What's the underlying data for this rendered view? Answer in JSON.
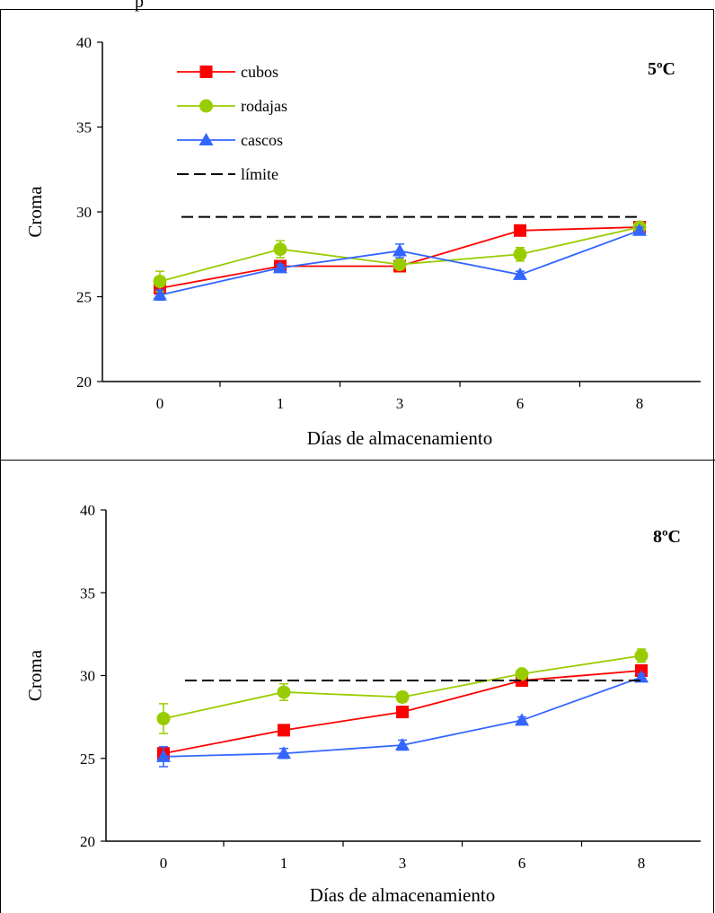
{
  "top_text": "p",
  "chart_data": [
    {
      "type": "line",
      "annotation": "5ºC",
      "xlabel": "Días de almacenamiento",
      "ylabel": "Croma",
      "categories": [
        "0",
        "1",
        "3",
        "6",
        "8"
      ],
      "ylim": [
        20,
        40
      ],
      "yticks": [
        "20",
        "25",
        "30",
        "35",
        "40"
      ],
      "grid": false,
      "legend_position": "top-left",
      "series": [
        {
          "name": "cubos",
          "color": "#ff0000",
          "marker": "square",
          "values": [
            25.5,
            26.8,
            26.8,
            28.9,
            29.1
          ],
          "errors": [
            0.3,
            0.2,
            0.2,
            0.2,
            0.3
          ]
        },
        {
          "name": "rodajas",
          "color": "#99cc00",
          "marker": "circle",
          "values": [
            25.9,
            27.8,
            26.9,
            27.5,
            29.1
          ],
          "errors": [
            0.6,
            0.5,
            0.2,
            0.4,
            0.3
          ]
        },
        {
          "name": "cascos",
          "color": "#3366ff",
          "marker": "triangle",
          "values": [
            25.1,
            26.7,
            27.7,
            26.3,
            28.9
          ],
          "errors": [
            0.3,
            0.2,
            0.4,
            0.2,
            0.2
          ]
        },
        {
          "name": "límite",
          "color": "#000000",
          "marker": "none",
          "dashed": true,
          "values": [
            29.7,
            29.7,
            29.7,
            29.7,
            29.7
          ]
        }
      ]
    },
    {
      "type": "line",
      "annotation": "8ºC",
      "xlabel": "Días de almacenamiento",
      "ylabel": "Croma",
      "categories": [
        "0",
        "1",
        "3",
        "6",
        "8"
      ],
      "ylim": [
        20,
        40
      ],
      "yticks": [
        "20",
        "25",
        "30",
        "35",
        "40"
      ],
      "grid": false,
      "series": [
        {
          "name": "cubos",
          "color": "#ff0000",
          "marker": "square",
          "values": [
            25.3,
            26.7,
            27.8,
            29.7,
            30.3
          ],
          "errors": [
            0.3,
            0.2,
            0.3,
            0.2,
            0.3
          ]
        },
        {
          "name": "rodajas",
          "color": "#99cc00",
          "marker": "circle",
          "values": [
            27.4,
            29.0,
            28.7,
            30.1,
            31.2
          ],
          "errors": [
            0.9,
            0.5,
            0.3,
            0.2,
            0.4
          ]
        },
        {
          "name": "cascos",
          "color": "#3366ff",
          "marker": "triangle",
          "values": [
            25.1,
            25.3,
            25.8,
            27.3,
            29.9
          ],
          "errors": [
            0.6,
            0.3,
            0.3,
            0.2,
            0.2
          ]
        },
        {
          "name": "límite",
          "color": "#000000",
          "marker": "none",
          "dashed": true,
          "values": [
            29.7,
            29.7,
            29.7,
            29.7,
            29.7
          ]
        }
      ]
    }
  ]
}
